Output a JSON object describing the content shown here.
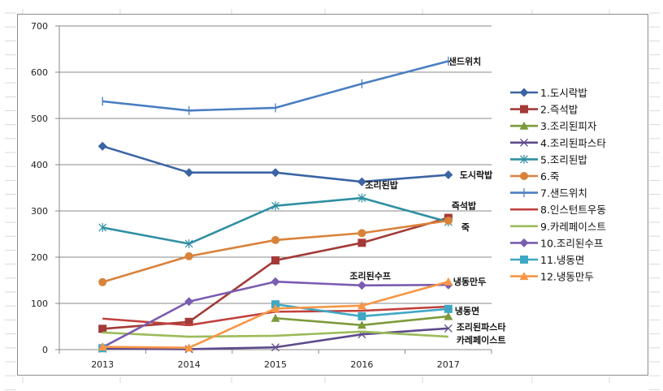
{
  "chart_data": {
    "type": "line",
    "title": "",
    "xlabel": "",
    "ylabel": "",
    "categories": [
      "2013",
      "2014",
      "2015",
      "2016",
      "2017"
    ],
    "ylim": [
      0,
      700
    ],
    "yticks": [
      "0",
      "100",
      "200",
      "300",
      "400",
      "500",
      "600",
      "700"
    ],
    "grid": true,
    "legend_position": "right",
    "series": [
      {
        "name": "1.도시락밥",
        "color": "#3a64a4",
        "marker": "diamond",
        "values": [
          440,
          383,
          383,
          363,
          378
        ]
      },
      {
        "name": "2.즉석밥",
        "color": "#a33a37",
        "marker": "square",
        "values": [
          45,
          60,
          193,
          231,
          285
        ]
      },
      {
        "name": "3.조리된피자",
        "color": "#7d9a3b",
        "marker": "triangle",
        "values": [
          null,
          null,
          68,
          53,
          72
        ]
      },
      {
        "name": "4.조리된파스타",
        "color": "#5e4a8c",
        "marker": "x",
        "values": [
          2,
          1,
          5,
          33,
          46
        ]
      },
      {
        "name": "5.조리된밥",
        "color": "#2f8fa3",
        "marker": "star",
        "values": [
          264,
          229,
          311,
          328,
          276
        ]
      },
      {
        "name": "6.죽",
        "color": "#d9823a",
        "marker": "circle",
        "values": [
          146,
          202,
          237,
          252,
          279
        ]
      },
      {
        "name": "7.샌드위치",
        "color": "#4a7ec2",
        "marker": "plus",
        "values": [
          537,
          517,
          523,
          575,
          624
        ]
      },
      {
        "name": "8.인스턴트우동",
        "color": "#c0403d",
        "marker": "none",
        "values": [
          67,
          53,
          82,
          84,
          93
        ]
      },
      {
        "name": "9.카레페이스트",
        "color": "#9bbb59",
        "marker": "none",
        "values": [
          37,
          28,
          30,
          39,
          28
        ]
      },
      {
        "name": "10.조리된수프",
        "color": "#7a5cb0",
        "marker": "diamond",
        "values": [
          5,
          104,
          147,
          139,
          140
        ]
      },
      {
        "name": "11.냉동면",
        "color": "#3fa8c4",
        "marker": "square",
        "values": [
          3,
          null,
          98,
          72,
          88
        ]
      },
      {
        "name": "12.냉동만두",
        "color": "#f79646",
        "marker": "triangle",
        "values": [
          6,
          4,
          89,
          95,
          147
        ]
      }
    ],
    "annotations": [
      {
        "text": "샌드위치",
        "category": "2017",
        "value": 624
      },
      {
        "text": "도시락밥",
        "category": "2017",
        "value": 378
      },
      {
        "text": "조리된밥",
        "category": "2016",
        "value": 328
      },
      {
        "text": "즉석밥",
        "category": "2017",
        "value": 285
      },
      {
        "text": "죽",
        "category": "2017",
        "value": 279
      },
      {
        "text": "조리된수프",
        "category": "2016",
        "value": 139
      },
      {
        "text": "냉동만두",
        "category": "2017",
        "value": 147
      },
      {
        "text": "냉동면",
        "category": "2017",
        "value": 88
      },
      {
        "text": "조리된파스타",
        "category": "2017",
        "value": 46
      },
      {
        "text": "카레페이스트",
        "category": "2017",
        "value": 28
      }
    ]
  }
}
